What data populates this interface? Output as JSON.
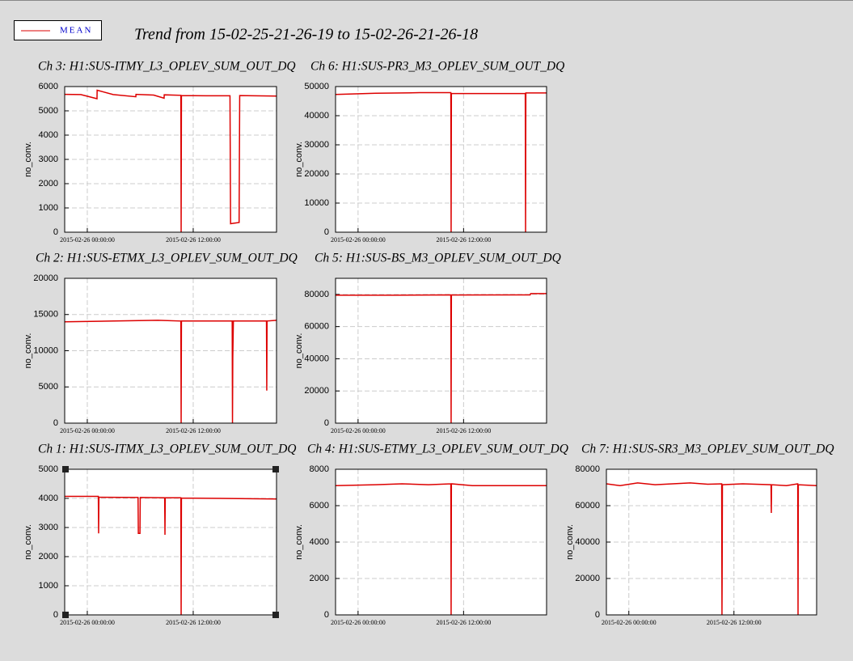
{
  "title": "Trend from 15-02-25-21-26-19 to 15-02-26-21-26-18",
  "chart_data": [
    {
      "type": "line",
      "title": "Ch 3: H1:SUS-ITMY_L3_OPLEV_SUM_OUT_DQ",
      "y_label": "no_conv.",
      "x": [
        "2015-02-25 21:26:19",
        "2015-02-25 23:16:00",
        "2015-02-26 01:06:00",
        "2015-02-26 01:07:00",
        "2015-02-26 02:56:00",
        "2015-02-26 05:30:00",
        "2015-02-26 05:31:00",
        "2015-02-26 07:31:00",
        "2015-02-26 08:42:00",
        "2015-02-26 08:43:00",
        "2015-02-26 10:36:00",
        "2015-02-26 10:38:00",
        "2015-02-26 10:40:00",
        "2015-02-26 13:56:00",
        "2015-02-26 16:10:00",
        "2015-02-26 16:14:00",
        "2015-02-26 17:12:00",
        "2015-02-26 17:16:00",
        "2015-02-26 21:26:18"
      ],
      "series": [
        {
          "name": "MEAN",
          "color": "#dd0000",
          "values": [
            5680,
            5670,
            5500,
            5850,
            5670,
            5580,
            5680,
            5650,
            5520,
            5660,
            5640,
            0,
            5630,
            5620,
            5620,
            350,
            400,
            5630,
            5610
          ]
        }
      ],
      "xlim": [
        "2015-02-25 21:26:19",
        "2015-02-26 21:26:18"
      ],
      "xticks": [
        "2015-02-26 00:00:00",
        "2015-02-26 12:00:00"
      ],
      "ylim": [
        0,
        6000
      ],
      "yticks": [
        0,
        1000,
        2000,
        3000,
        4000,
        5000,
        6000
      ],
      "grid": true
    },
    {
      "type": "line",
      "title": "Ch 6: H1:SUS-PR3_M3_OPLEV_SUM_OUT_DQ",
      "y_label": "no_conv.",
      "x": [
        "2015-02-25 21:26:19",
        "2015-02-26 02:00:00",
        "2015-02-26 07:00:00",
        "2015-02-26 10:33:00",
        "2015-02-26 10:35:00",
        "2015-02-26 10:37:00",
        "2015-02-26 15:00:00",
        "2015-02-26 19:01:00",
        "2015-02-26 19:03:00",
        "2015-02-26 19:05:00",
        "2015-02-26 21:26:18"
      ],
      "series": [
        {
          "name": "MEAN",
          "color": "#dd0000",
          "values": [
            47300,
            47700,
            47900,
            47900,
            0,
            47600,
            47600,
            47600,
            0,
            47800,
            47800
          ]
        }
      ],
      "xlim": [
        "2015-02-25 21:26:19",
        "2015-02-26 21:26:18"
      ],
      "xticks": [
        "2015-02-26 00:00:00",
        "2015-02-26 12:00:00"
      ],
      "ylim": [
        0,
        50000
      ],
      "yticks": [
        0,
        10000,
        20000,
        30000,
        40000,
        50000
      ],
      "grid": true
    },
    {
      "type": "line",
      "title": "Ch 2: H1:SUS-ETMX_L3_OPLEV_SUM_OUT_DQ",
      "y_label": "no_conv.",
      "x": [
        "2015-02-25 21:26:19",
        "2015-02-26 03:00:00",
        "2015-02-26 08:00:00",
        "2015-02-26 10:36:00",
        "2015-02-26 10:38:00",
        "2015-02-26 10:40:00",
        "2015-02-26 16:25:00",
        "2015-02-26 16:27:00",
        "2015-02-26 16:29:00",
        "2015-02-26 16:33:00",
        "2015-02-26 20:18:00",
        "2015-02-26 20:20:00",
        "2015-02-26 20:22:00",
        "2015-02-26 21:26:18"
      ],
      "series": [
        {
          "name": "MEAN",
          "color": "#dd0000",
          "values": [
            14000,
            14100,
            14200,
            14100,
            0,
            14100,
            14100,
            0,
            9000,
            14100,
            14100,
            4500,
            14100,
            14200
          ]
        }
      ],
      "xlim": [
        "2015-02-25 21:26:19",
        "2015-02-26 21:26:18"
      ],
      "xticks": [
        "2015-02-26 00:00:00",
        "2015-02-26 12:00:00"
      ],
      "ylim": [
        0,
        20000
      ],
      "yticks": [
        0,
        5000,
        10000,
        15000,
        20000
      ],
      "grid": true
    },
    {
      "type": "line",
      "title": "Ch 5: H1:SUS-BS_M3_OPLEV_SUM_OUT_DQ",
      "y_label": "no_conv.",
      "x": [
        "2015-02-25 21:26:19",
        "2015-02-26 04:00:00",
        "2015-02-26 10:33:00",
        "2015-02-26 10:35:00",
        "2015-02-26 10:37:00",
        "2015-02-26 19:34:00",
        "2015-02-26 19:38:00",
        "2015-02-26 21:26:18"
      ],
      "series": [
        {
          "name": "MEAN",
          "color": "#dd0000",
          "values": [
            79500,
            79500,
            79700,
            0,
            79600,
            79700,
            80500,
            80500
          ]
        }
      ],
      "xlim": [
        "2015-02-25 21:26:19",
        "2015-02-26 21:26:18"
      ],
      "xticks": [
        "2015-02-26 00:00:00",
        "2015-02-26 12:00:00"
      ],
      "ylim": [
        0,
        90000
      ],
      "yticks": [
        0,
        20000,
        40000,
        60000,
        80000
      ],
      "grid": true
    },
    {
      "type": "line",
      "title": "Ch 1: H1:SUS-ITMX_L3_OPLEV_SUM_OUT_DQ",
      "y_label": "no_conv.",
      "x": [
        "2015-02-25 21:26:19",
        "2015-02-26 01:15:00",
        "2015-02-26 01:17:00",
        "2015-02-26 01:19:00",
        "2015-02-26 05:45:00",
        "2015-02-26 05:47:00",
        "2015-02-26 05:58:00",
        "2015-02-26 06:00:00",
        "2015-02-26 08:46:00",
        "2015-02-26 08:48:00",
        "2015-02-26 08:50:00",
        "2015-02-26 10:36:00",
        "2015-02-26 10:38:00",
        "2015-02-26 10:40:00",
        "2015-02-26 15:00:00",
        "2015-02-26 21:26:18"
      ],
      "series": [
        {
          "name": "MEAN",
          "color": "#dd0000",
          "values": [
            4070,
            4070,
            2800,
            4040,
            4030,
            2800,
            2800,
            4030,
            4020,
            2750,
            4020,
            4020,
            0,
            4010,
            4000,
            3980
          ]
        }
      ],
      "xlim": [
        "2015-02-25 21:26:19",
        "2015-02-26 21:26:18"
      ],
      "xticks": [
        "2015-02-26 00:00:00",
        "2015-02-26 12:00:00"
      ],
      "ylim": [
        0,
        5000
      ],
      "yticks": [
        0,
        1000,
        2000,
        3000,
        4000,
        5000
      ],
      "grid": true
    },
    {
      "type": "line",
      "title": "Ch 4: H1:SUS-ETMY_L3_OPLEV_SUM_OUT_DQ",
      "y_label": "no_conv.",
      "x": [
        "2015-02-25 21:26:19",
        "2015-02-26 02:00:00",
        "2015-02-26 05:00:00",
        "2015-02-26 08:00:00",
        "2015-02-26 10:33:00",
        "2015-02-26 10:35:00",
        "2015-02-26 10:37:00",
        "2015-02-26 13:00:00",
        "2015-02-26 21:26:18"
      ],
      "series": [
        {
          "name": "MEAN",
          "color": "#dd0000",
          "values": [
            7100,
            7150,
            7200,
            7150,
            7200,
            0,
            7200,
            7100,
            7100
          ]
        }
      ],
      "xlim": [
        "2015-02-25 21:26:19",
        "2015-02-26 21:26:18"
      ],
      "xticks": [
        "2015-02-26 00:00:00",
        "2015-02-26 12:00:00"
      ],
      "ylim": [
        0,
        8000
      ],
      "yticks": [
        0,
        2000,
        4000,
        6000,
        8000
      ],
      "grid": true
    },
    {
      "type": "line",
      "title": "Ch 7: H1:SUS-SR3_M3_OPLEV_SUM_OUT_DQ",
      "y_label": "no_conv.",
      "x": [
        "2015-02-25 21:26:19",
        "2015-02-25 23:00:00",
        "2015-02-26 01:00:00",
        "2015-02-26 03:00:00",
        "2015-02-26 05:00:00",
        "2015-02-26 07:00:00",
        "2015-02-26 09:00:00",
        "2015-02-26 10:36:00",
        "2015-02-26 10:38:00",
        "2015-02-26 10:39:00",
        "2015-02-26 10:41:00",
        "2015-02-26 13:00:00",
        "2015-02-26 16:14:00",
        "2015-02-26 16:16:00",
        "2015-02-26 16:18:00",
        "2015-02-26 18:00:00",
        "2015-02-26 19:17:00",
        "2015-02-26 19:19:00",
        "2015-02-26 19:21:00",
        "2015-02-26 21:26:18"
      ],
      "series": [
        {
          "name": "MEAN",
          "color": "#dd0000",
          "values": [
            72000,
            71000,
            72500,
            71500,
            72000,
            72500,
            71800,
            72000,
            0,
            18000,
            71500,
            72000,
            71500,
            56000,
            71500,
            71000,
            72000,
            0,
            71500,
            71000
          ]
        }
      ],
      "xlim": [
        "2015-02-25 21:26:19",
        "2015-02-26 21:26:18"
      ],
      "xticks": [
        "2015-02-26 00:00:00",
        "2015-02-26 12:00:00"
      ],
      "ylim": [
        0,
        80000
      ],
      "yticks": [
        0,
        20000,
        40000,
        60000,
        80000
      ],
      "grid": true
    }
  ]
}
